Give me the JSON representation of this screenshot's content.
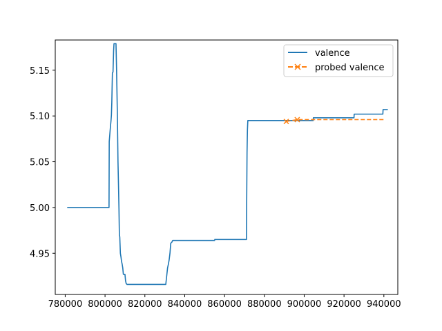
{
  "chart_data": {
    "type": "line",
    "xlim": [
      775000,
      947000
    ],
    "ylim": [
      4.905,
      5.183
    ],
    "xticks": [
      780000,
      800000,
      820000,
      840000,
      860000,
      880000,
      900000,
      920000,
      940000
    ],
    "yticks": [
      4.95,
      5.0,
      5.05,
      5.1,
      5.15
    ],
    "ytick_labels": [
      "4.95",
      "5.00",
      "5.05",
      "5.10",
      "5.15"
    ],
    "grid": false,
    "legend_position": "top-right",
    "colors": {
      "valence": "#1f77b4",
      "probed": "#ff7f0e"
    },
    "series": [
      {
        "name": "valence",
        "style": "solid",
        "points": [
          [
            781000,
            5.0
          ],
          [
            802000,
            5.0
          ],
          [
            802100,
            5.072
          ],
          [
            802400,
            5.08
          ],
          [
            802700,
            5.088
          ],
          [
            803000,
            5.095
          ],
          [
            803200,
            5.101
          ],
          [
            803400,
            5.115
          ],
          [
            803700,
            5.147
          ],
          [
            804000,
            5.148
          ],
          [
            804300,
            5.171
          ],
          [
            804500,
            5.179
          ],
          [
            805500,
            5.179
          ],
          [
            805800,
            5.15
          ],
          [
            806200,
            5.1
          ],
          [
            806500,
            5.05
          ],
          [
            806800,
            5.02
          ],
          [
            807000,
            4.998
          ],
          [
            807200,
            4.97
          ],
          [
            807400,
            4.968
          ],
          [
            807700,
            4.95
          ],
          [
            808000,
            4.946
          ],
          [
            808300,
            4.941
          ],
          [
            808600,
            4.938
          ],
          [
            808900,
            4.934
          ],
          [
            809200,
            4.927
          ],
          [
            810000,
            4.927
          ],
          [
            810300,
            4.92
          ],
          [
            810600,
            4.917
          ],
          [
            811000,
            4.916
          ],
          [
            830500,
            4.916
          ],
          [
            830800,
            4.922
          ],
          [
            831100,
            4.928
          ],
          [
            831400,
            4.934
          ],
          [
            831800,
            4.938
          ],
          [
            832200,
            4.943
          ],
          [
            832600,
            4.95
          ],
          [
            833000,
            4.961
          ],
          [
            833500,
            4.962
          ],
          [
            834000,
            4.964
          ],
          [
            855000,
            4.964
          ],
          [
            855100,
            4.965
          ],
          [
            871000,
            4.965
          ],
          [
            871100,
            5.0
          ],
          [
            871300,
            5.06
          ],
          [
            871500,
            5.085
          ],
          [
            871700,
            5.095
          ],
          [
            904500,
            5.095
          ],
          [
            904600,
            5.098
          ],
          [
            925000,
            5.098
          ],
          [
            925100,
            5.102
          ],
          [
            939500,
            5.102
          ],
          [
            939600,
            5.107
          ],
          [
            942000,
            5.107
          ]
        ]
      },
      {
        "name": "probed valence",
        "style": "dashed",
        "marker": "x",
        "points": [
          [
            891000,
            5.094
          ],
          [
            896500,
            5.096
          ],
          [
            940000,
            5.096
          ]
        ],
        "marker_points": [
          [
            891000,
            5.094
          ],
          [
            896500,
            5.096
          ]
        ]
      }
    ]
  }
}
